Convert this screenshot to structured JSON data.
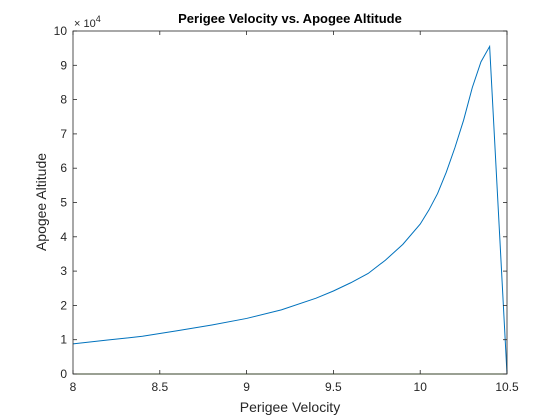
{
  "chart_data": {
    "type": "line",
    "title": "Perigee Velocity vs. Apogee Altitude",
    "xlabel": "Perigee Velocity",
    "ylabel": "Apogee Altitude",
    "xlim": [
      8,
      10.5
    ],
    "ylim": [
      0,
      100000
    ],
    "x_ticks": [
      "8",
      "8.5",
      "9",
      "9.5",
      "10",
      "10.5"
    ],
    "y_ticks": [
      "0",
      "1",
      "2",
      "3",
      "4",
      "5",
      "6",
      "7",
      "8",
      "9",
      "10"
    ],
    "y_exponent": {
      "base": "× 10",
      "power": "4"
    },
    "grid": false,
    "series": [
      {
        "color": "#0072BD",
        "x": [
          8.0,
          8.2,
          8.4,
          8.6,
          8.8,
          9.0,
          9.2,
          9.4,
          9.5,
          9.6,
          9.7,
          9.8,
          9.9,
          10.0,
          10.05,
          10.1,
          10.15,
          10.2,
          10.25,
          10.3,
          10.35,
          10.4,
          10.5
        ],
        "values": [
          8800,
          9900,
          11000,
          12600,
          14300,
          16200,
          18700,
          22100,
          24200,
          26600,
          29300,
          33200,
          37800,
          43700,
          47800,
          52600,
          58800,
          66000,
          74000,
          83500,
          91000,
          95500,
          0
        ]
      },
      {
        "color": "#77AC30",
        "x": [
          8.0,
          10.5
        ],
        "values": [
          0,
          0
        ]
      }
    ]
  }
}
